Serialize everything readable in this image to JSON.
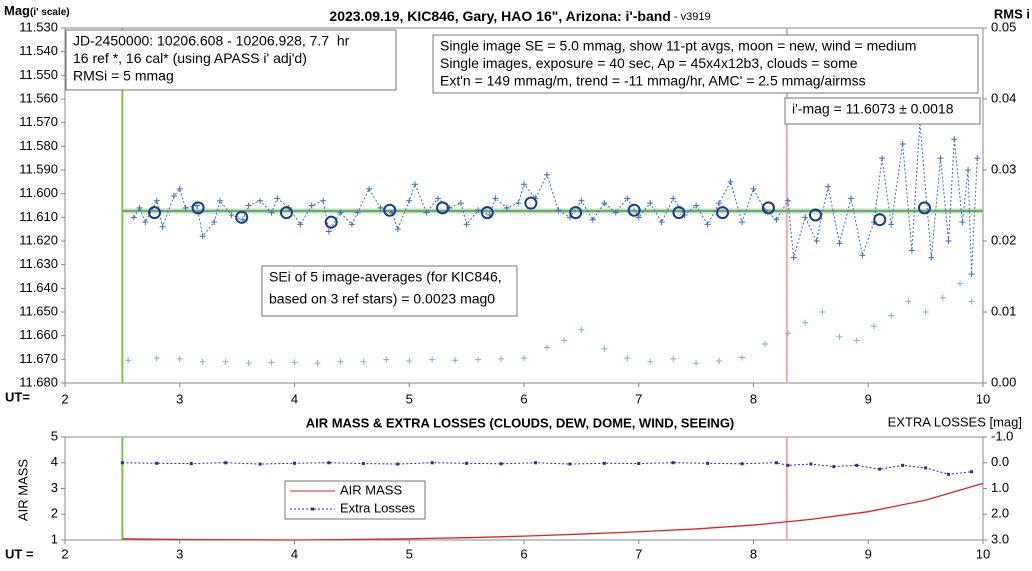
{
  "chart_data": [
    {
      "type": "line",
      "title": "2023.09.19, KIC846, Gary, HAO 16\", Arizona: i'-band",
      "title_note": " - v3919",
      "y_label": "Mag",
      "y_label_note": "(i' scale)",
      "y2_label": "RMS i",
      "x_label": "UT=",
      "xlim": [
        2,
        10
      ],
      "xticks": [
        2,
        3,
        4,
        5,
        6,
        7,
        8,
        9,
        10
      ],
      "ylim": [
        11.68,
        11.53
      ],
      "yticks": [
        {
          "value": 11.53,
          "label": "11.530"
        },
        {
          "value": 11.54,
          "label": "11.540"
        },
        {
          "value": 11.55,
          "label": "11.550"
        },
        {
          "value": 11.56,
          "label": "11.560"
        },
        {
          "value": 11.57,
          "label": "11.570"
        },
        {
          "value": 11.58,
          "label": "11.580"
        },
        {
          "value": 11.59,
          "label": "11.590"
        },
        {
          "value": 11.6,
          "label": "11.600"
        },
        {
          "value": 11.61,
          "label": "11.610"
        },
        {
          "value": 11.62,
          "label": "11.620"
        },
        {
          "value": 11.63,
          "label": "11.630"
        },
        {
          "value": 11.64,
          "label": "11.640"
        },
        {
          "value": 11.65,
          "label": "11.650"
        },
        {
          "value": 11.66,
          "label": "11.660"
        },
        {
          "value": 11.67,
          "label": "11.670"
        },
        {
          "value": 11.68,
          "label": "11.680"
        }
      ],
      "y2lim": [
        0,
        0.05
      ],
      "y2ticks": [
        {
          "value": 0,
          "label": "0.00"
        },
        {
          "value": 0.01,
          "label": "0.01"
        },
        {
          "value": 0.02,
          "label": "0.02"
        },
        {
          "value": 0.03,
          "label": "0.03"
        },
        {
          "value": 0.04,
          "label": "0.04"
        },
        {
          "value": 0.05,
          "label": "0.05"
        }
      ],
      "series": [
        {
          "color": "#3f6fb5",
          "style": "cross-dashed",
          "x": [
            2.6,
            2.65,
            2.7,
            2.8,
            2.85,
            2.95,
            3.0,
            3.05,
            3.15,
            3.2,
            3.3,
            3.35,
            3.45,
            3.55,
            3.6,
            3.7,
            3.8,
            3.85,
            3.95,
            4.05,
            4.15,
            4.25,
            4.3,
            4.4,
            4.5,
            4.55,
            4.65,
            4.75,
            4.85,
            4.9,
            5.0,
            5.05,
            5.15,
            5.25,
            5.35,
            5.45,
            5.5,
            5.6,
            5.7,
            5.75,
            5.85,
            5.95,
            6.0,
            6.1,
            6.2,
            6.3,
            6.4,
            6.5,
            6.6,
            6.7,
            6.8,
            6.9,
            7.0,
            7.1,
            7.2,
            7.3,
            7.4,
            7.5,
            7.6,
            7.7,
            7.8,
            7.9,
            8.0,
            8.1,
            8.2,
            8.3,
            8.35,
            8.45,
            8.55,
            8.65,
            8.75,
            8.85,
            8.95,
            9.05,
            9.12,
            9.2,
            9.3,
            9.38,
            9.45,
            9.55,
            9.63,
            9.7,
            9.75,
            9.82,
            9.87,
            9.9,
            9.95
          ],
          "values": [
            11.61,
            11.606,
            11.612,
            11.603,
            11.614,
            11.601,
            11.598,
            11.606,
            11.605,
            11.618,
            11.612,
            11.603,
            11.609,
            11.611,
            11.605,
            11.603,
            11.608,
            11.602,
            11.606,
            11.613,
            11.605,
            11.603,
            11.616,
            11.608,
            11.613,
            11.608,
            11.598,
            11.606,
            11.608,
            11.615,
            11.603,
            11.596,
            11.608,
            11.602,
            11.606,
            11.604,
            11.613,
            11.607,
            11.609,
            11.602,
            11.606,
            11.604,
            11.596,
            11.602,
            11.592,
            11.607,
            11.61,
            11.603,
            11.611,
            11.604,
            11.608,
            11.602,
            11.61,
            11.604,
            11.612,
            11.602,
            11.609,
            11.605,
            11.613,
            11.604,
            11.595,
            11.612,
            11.598,
            11.607,
            11.611,
            11.603,
            11.627,
            11.61,
            11.62,
            11.597,
            11.621,
            11.602,
            11.626,
            11.612,
            11.585,
            11.613,
            11.579,
            11.624,
            11.57,
            11.627,
            11.585,
            11.62,
            11.577,
            11.612,
            11.59,
            11.634,
            11.585
          ]
        },
        {
          "color": "#1a3a8c",
          "style": "circle",
          "x": [
            2.78,
            3.16,
            3.54,
            3.93,
            4.32,
            4.83,
            5.29,
            5.68,
            6.06,
            6.45,
            6.96,
            7.35,
            7.73,
            8.13,
            8.54,
            9.1,
            9.49
          ],
          "values": [
            11.608,
            11.606,
            11.61,
            11.608,
            11.612,
            11.607,
            11.606,
            11.608,
            11.604,
            11.608,
            11.607,
            11.608,
            11.608,
            11.606,
            11.609,
            11.611,
            11.606
          ]
        },
        {
          "color": "#7fb4c2",
          "style": "cross",
          "axis": "y2",
          "x": [
            2.55,
            2.8,
            3.0,
            3.2,
            3.4,
            3.6,
            3.8,
            4.0,
            4.2,
            4.4,
            4.6,
            4.8,
            5.0,
            5.2,
            5.4,
            5.6,
            5.8,
            6.0,
            6.2,
            6.35,
            6.5,
            6.7,
            6.9,
            7.1,
            7.3,
            7.5,
            7.7,
            7.9,
            8.1,
            8.3,
            8.45,
            8.6,
            8.75,
            8.9,
            9.05,
            9.2,
            9.35,
            9.5,
            9.65,
            9.8,
            9.9
          ],
          "values": [
            0.0032,
            0.0035,
            0.0034,
            0.003,
            0.003,
            0.0028,
            0.0029,
            0.0029,
            0.0028,
            0.003,
            0.003,
            0.0033,
            0.0031,
            0.0033,
            0.0032,
            0.0033,
            0.0034,
            0.0035,
            0.005,
            0.006,
            0.0075,
            0.0048,
            0.0035,
            0.003,
            0.0034,
            0.0028,
            0.0031,
            0.0036,
            0.0055,
            0.007,
            0.0085,
            0.01,
            0.0065,
            0.006,
            0.008,
            0.0095,
            0.0115,
            0.01,
            0.012,
            0.014,
            0.0115
          ]
        }
      ],
      "hlines": [
        {
          "value": 11.6073,
          "color": "#4f9a5a"
        }
      ],
      "vlines": [
        {
          "x": 2.5,
          "color": "#7cc24a"
        },
        {
          "x": 8.29,
          "color": "#f4a9a9"
        }
      ],
      "annotations": [
        {
          "lines": [
            "JD-2450000: 10206.608 - 10206.928, 7.7  hr",
            "16 ref *, 16 cal* (using APASS i' adj'd)",
            "RMSi = 5 mmag"
          ]
        },
        {
          "lines": [
            "Single image SE = 5.0 mmag, show 11-pt avgs, moon = new, wind = medium",
            "Single images, exposure = 40 sec, Ap = 45x4x12b3, clouds = some",
            "Ext'n = 149 mmag/m, trend = -11 mmag/hr, AMC' = 2.5 mmag/airmss"
          ]
        },
        {
          "lines": [
            "i'-mag = 11.6073 ± 0.0018"
          ]
        },
        {
          "lines": [
            "SEi of 5 image-averages (for KIC846,",
            "based on 3 ref stars) = 0.0023 mag0"
          ]
        }
      ]
    },
    {
      "type": "line",
      "title": "AIR MASS & EXTRA LOSSES (CLOUDS, DEW, DOME, WIND, SEEING)",
      "y_label": "AIR MASS",
      "y2_label": "EXTRA LOSSES [mag]",
      "x_label": "UT =",
      "xlim": [
        2,
        10
      ],
      "xticks": [
        2,
        3,
        4,
        5,
        6,
        7,
        8,
        9,
        10
      ],
      "ylim": [
        1,
        5
      ],
      "yticks": [
        1,
        2,
        3,
        4,
        5
      ],
      "y2lim": [
        3,
        -1
      ],
      "y2ticks": [
        {
          "value": -1,
          "label": "-1.0"
        },
        {
          "value": 0,
          "label": "0.0"
        },
        {
          "value": 1,
          "label": "1.0"
        },
        {
          "value": 2,
          "label": "2.0"
        },
        {
          "value": 3,
          "label": "3.0"
        }
      ],
      "series": [
        {
          "name": "AIR MASS",
          "color": "#d62728",
          "style": "line",
          "x": [
            2.5,
            3,
            3.5,
            4,
            4.5,
            5,
            5.5,
            6,
            6.5,
            7,
            7.5,
            8,
            8.5,
            9,
            9.5,
            10
          ],
          "values": [
            1.05,
            1.02,
            1.01,
            1.0,
            1.02,
            1.05,
            1.09,
            1.15,
            1.23,
            1.32,
            1.43,
            1.58,
            1.8,
            2.1,
            2.55,
            3.2
          ]
        },
        {
          "name": "Extra Losses",
          "color": "#1f2fa0",
          "style": "dash-marker",
          "axis": "y2",
          "x": [
            2.5,
            2.8,
            3.1,
            3.4,
            3.7,
            4.0,
            4.3,
            4.6,
            4.9,
            5.2,
            5.5,
            5.8,
            6.1,
            6.4,
            6.7,
            7.0,
            7.3,
            7.6,
            7.9,
            8.2,
            8.3,
            8.5,
            8.7,
            8.9,
            9.1,
            9.3,
            9.5,
            9.7,
            9.9
          ],
          "values": [
            0.0,
            0.02,
            0.03,
            0.0,
            0.05,
            0.02,
            0.0,
            0.03,
            0.05,
            0.0,
            0.02,
            0.04,
            0.0,
            0.05,
            0.02,
            0.03,
            0.0,
            0.02,
            0.04,
            0.0,
            0.1,
            0.05,
            0.15,
            0.1,
            0.25,
            0.1,
            0.2,
            0.45,
            0.35
          ]
        }
      ],
      "vlines": [
        {
          "x": 2.5,
          "color": "#7cc24a"
        },
        {
          "x": 8.29,
          "color": "#f4a9a9"
        }
      ]
    }
  ]
}
